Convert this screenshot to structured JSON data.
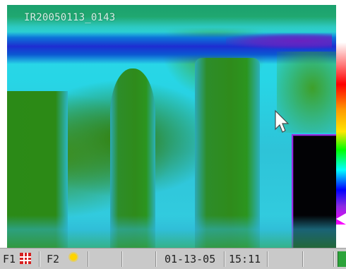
{
  "image": {
    "label": "IR20050113_0143"
  },
  "status_bar": {
    "f1_label": "F1",
    "f2_label": "F2",
    "date": "01-13-05",
    "time": "15:11"
  },
  "icons": {
    "grid": "grid-icon",
    "sun": "sun-icon",
    "battery": "battery-icon",
    "pointer": "pointer-icon"
  }
}
